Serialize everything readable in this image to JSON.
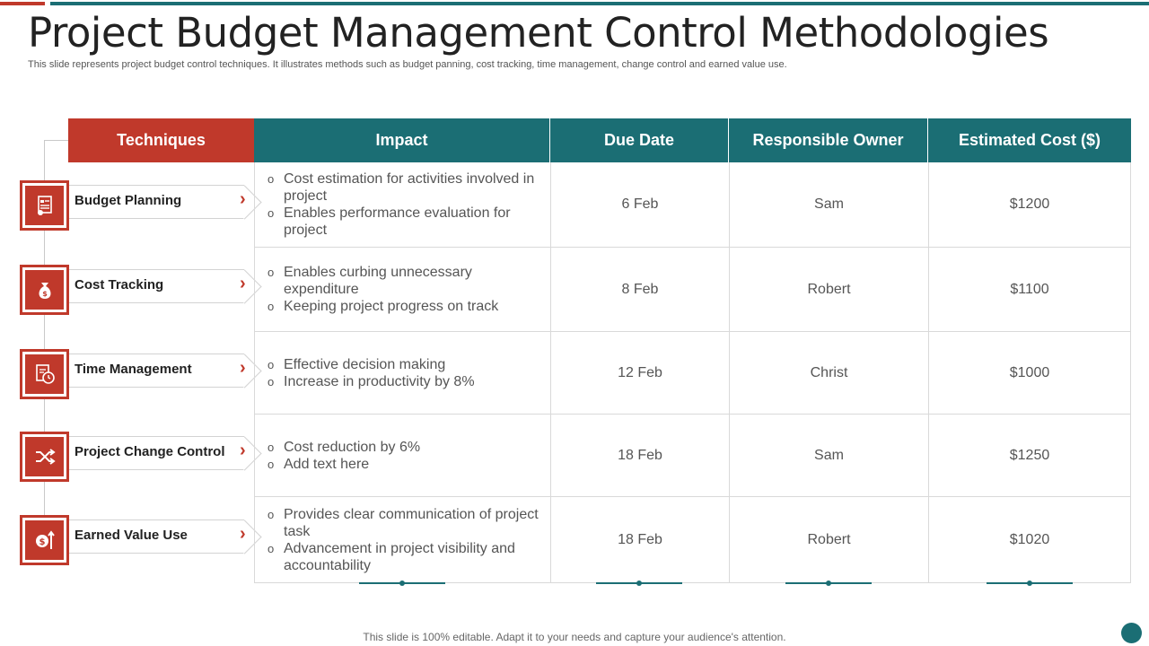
{
  "title": "Project Budget Management Control Methodologies",
  "subtitle": "This slide represents project budget control techniques. It illustrates methods such as budget panning, cost tracking, time management, change control and earned value use.",
  "headers": {
    "techniques": "Techniques",
    "impact": "Impact",
    "due_date": "Due Date",
    "owner": "Responsible Owner",
    "cost": "Estimated Cost ($)"
  },
  "rows": [
    {
      "technique": "Budget Planning",
      "icon": "budget-report-icon",
      "impact": [
        "Cost estimation for activities involved in project",
        "Enables performance evaluation for project"
      ],
      "due_date": "6 Feb",
      "owner": "Sam",
      "cost": "$1200"
    },
    {
      "technique": "Cost Tracking",
      "icon": "money-bag-icon",
      "impact": [
        "Enables curbing unnecessary expenditure",
        "Keeping project progress on track"
      ],
      "due_date": "8 Feb",
      "owner": "Robert",
      "cost": "$1100"
    },
    {
      "technique": "Time Management",
      "icon": "document-clock-icon",
      "impact": [
        "Effective decision making",
        "Increase in productivity by 8%"
      ],
      "due_date": "12 Feb",
      "owner": "Christ",
      "cost": "$1000"
    },
    {
      "technique": "Project Change Control",
      "icon": "shuffle-icon",
      "impact": [
        "Cost reduction by 6%",
        "Add text here"
      ],
      "due_date": "18 Feb",
      "owner": "Sam",
      "cost": "$1250"
    },
    {
      "technique": "Earned Value Use",
      "icon": "dollar-growth-icon",
      "impact": [
        "Provides clear communication of project task",
        "Advancement in project visibility and accountability"
      ],
      "due_date": "18 Feb",
      "owner": "Robert",
      "cost": "$1020"
    }
  ],
  "footer": "This slide is 100% editable. Adapt it to your needs and capture your audience's attention.",
  "colors": {
    "accent_red": "#c0392b",
    "accent_teal": "#1b6e74"
  }
}
